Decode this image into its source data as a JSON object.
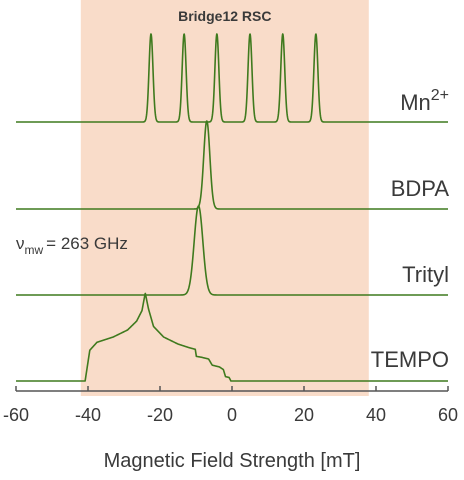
{
  "chart_data": {
    "type": "line",
    "xlabel": "Magnetic Field Strength [mT]",
    "xlim": [
      -60,
      60
    ],
    "xticks": [
      "-60",
      "-40",
      "-20",
      "0",
      "20",
      "40",
      "60"
    ],
    "band": {
      "label": "Bridge12 RSC",
      "range": [
        -42,
        38
      ],
      "color": "#f9dcc9",
      "label_color": "#ee7d31"
    },
    "annotation": {
      "symbol": "ν",
      "subscript": "mw",
      "text": "= 263 GHz"
    },
    "line_color": "#3f7a1e",
    "series": [
      {
        "name": "Mn",
        "superscript": "2+",
        "kind": "sticks",
        "centers": [
          -22.5,
          -13.3,
          -4.2,
          5.0,
          14.1,
          23.3
        ],
        "width": 0.55,
        "height": 1.0
      },
      {
        "name": "BDPA",
        "kind": "peak",
        "center": -7.0,
        "width": 0.85,
        "height": 1.0
      },
      {
        "name": "Trityl",
        "kind": "peak",
        "center": -9.3,
        "width": 1.2,
        "height": 1.0
      },
      {
        "name": "TEMPO",
        "kind": "powder",
        "points": [
          [
            -60,
            0.0
          ],
          [
            -40.8,
            0.0
          ],
          [
            -39.5,
            0.35
          ],
          [
            -37.5,
            0.44
          ],
          [
            -33,
            0.5
          ],
          [
            -29,
            0.58
          ],
          [
            -26.5,
            0.68
          ],
          [
            -25,
            0.8
          ],
          [
            -24.1,
            1.0
          ],
          [
            -23.2,
            0.82
          ],
          [
            -21.8,
            0.62
          ],
          [
            -19,
            0.5
          ],
          [
            -15,
            0.42
          ],
          [
            -12,
            0.38
          ],
          [
            -10.2,
            0.36
          ],
          [
            -9.9,
            0.28
          ],
          [
            -8.5,
            0.27
          ],
          [
            -6.5,
            0.25
          ],
          [
            -5.5,
            0.18
          ],
          [
            -3.5,
            0.16
          ],
          [
            -2.4,
            0.13
          ],
          [
            -1.8,
            0.05
          ],
          [
            -0.8,
            0.04
          ],
          [
            -0.3,
            0.0
          ],
          [
            60,
            0.0
          ]
        ]
      }
    ]
  }
}
